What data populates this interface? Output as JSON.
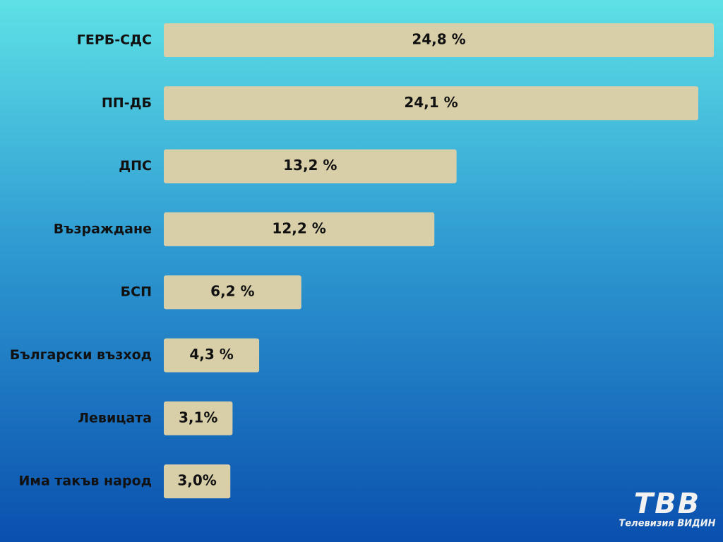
{
  "chart_data": {
    "type": "bar",
    "orientation": "horizontal",
    "categories": [
      "ГЕРБ-СДС",
      "ПП-ДБ",
      "ДПС",
      "Възраждане",
      "БСП",
      "Български възход",
      "Левицата",
      "Има такъв народ"
    ],
    "values": [
      24.8,
      24.1,
      13.2,
      12.2,
      6.2,
      4.3,
      3.1,
      3.0
    ],
    "value_labels": [
      "24,8 %",
      "24,1 %",
      "13,2 %",
      "12,2 %",
      "6,2 %",
      "4,3 %",
      "3,1%",
      "3,0%"
    ],
    "color": "#d8cfa8"
  },
  "logo": {
    "mark": "ТВВ",
    "caption": "Телевизия ВИДИН"
  }
}
